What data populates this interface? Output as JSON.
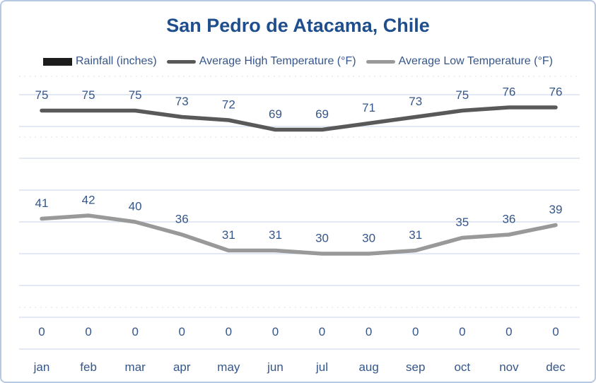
{
  "chart_data": {
    "type": "combo-bar-line",
    "title": "San Pedro de Atacama, Chile",
    "categories": [
      "jan",
      "feb",
      "mar",
      "apr",
      "may",
      "jun",
      "jul",
      "aug",
      "sep",
      "oct",
      "nov",
      "dec"
    ],
    "series": [
      {
        "name": "Rainfall (inches)",
        "chart_type": "bar",
        "color": "#1c1c1c",
        "values": [
          0,
          0,
          0,
          0,
          0,
          0,
          0,
          0,
          0,
          0,
          0,
          0
        ]
      },
      {
        "name": "Average High Temperature (°F)",
        "chart_type": "line",
        "color": "#595959",
        "values": [
          75,
          75,
          75,
          73,
          72,
          69,
          69,
          71,
          73,
          75,
          76,
          76
        ]
      },
      {
        "name": "Average Low Temperature (°F)",
        "chart_type": "line",
        "color": "#999999",
        "values": [
          41,
          42,
          40,
          36,
          31,
          31,
          30,
          30,
          31,
          35,
          36,
          39
        ]
      }
    ],
    "xlabel": "",
    "ylabel": "",
    "ylim": [
      0,
      80
    ],
    "gridline_step": 10,
    "grid": true,
    "axis_tick_labels_hidden": true,
    "data_labels": true,
    "legend_position": "top",
    "colors": {
      "title": "#1f4e8c",
      "labels": "#35568a",
      "gridline": "#d9e2f1",
      "gridline_dotted": "#dde5f1",
      "card_border": "#b6c8e4"
    }
  }
}
